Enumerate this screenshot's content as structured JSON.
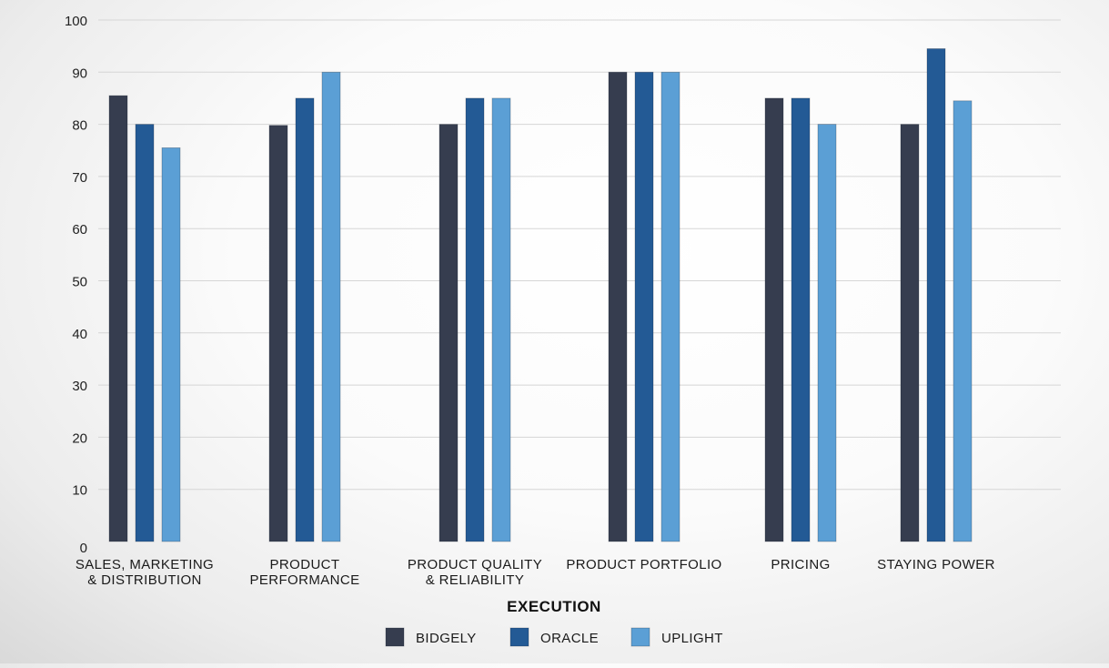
{
  "chart_data": {
    "type": "bar",
    "title": "",
    "xlabel": "EXECUTION",
    "ylabel": "",
    "ylim": [
      0,
      100
    ],
    "yticks": [
      0,
      10,
      20,
      30,
      40,
      50,
      60,
      70,
      80,
      90,
      100
    ],
    "grid": true,
    "legend_position": "bottom-center",
    "categories": [
      [
        "SALES, MARKETING",
        "& DISTRIBUTION"
      ],
      [
        "PRODUCT",
        "PERFORMANCE"
      ],
      [
        "PRODUCT QUALITY",
        "& RELIABILITY"
      ],
      [
        "PRODUCT PORTFOLIO"
      ],
      [
        "PRICING"
      ],
      [
        "STAYING POWER"
      ]
    ],
    "series": [
      {
        "name": "BIDGELY",
        "color": "#363d4f",
        "values": [
          85.5,
          79.8,
          80,
          90,
          85,
          80
        ]
      },
      {
        "name": "ORACLE",
        "color": "#235a95",
        "values": [
          80,
          85,
          85,
          90,
          85,
          94.5
        ]
      },
      {
        "name": "UPLIGHT",
        "color": "#5b9fd5",
        "values": [
          75.5,
          90,
          85,
          90,
          80,
          84.5
        ]
      }
    ]
  }
}
